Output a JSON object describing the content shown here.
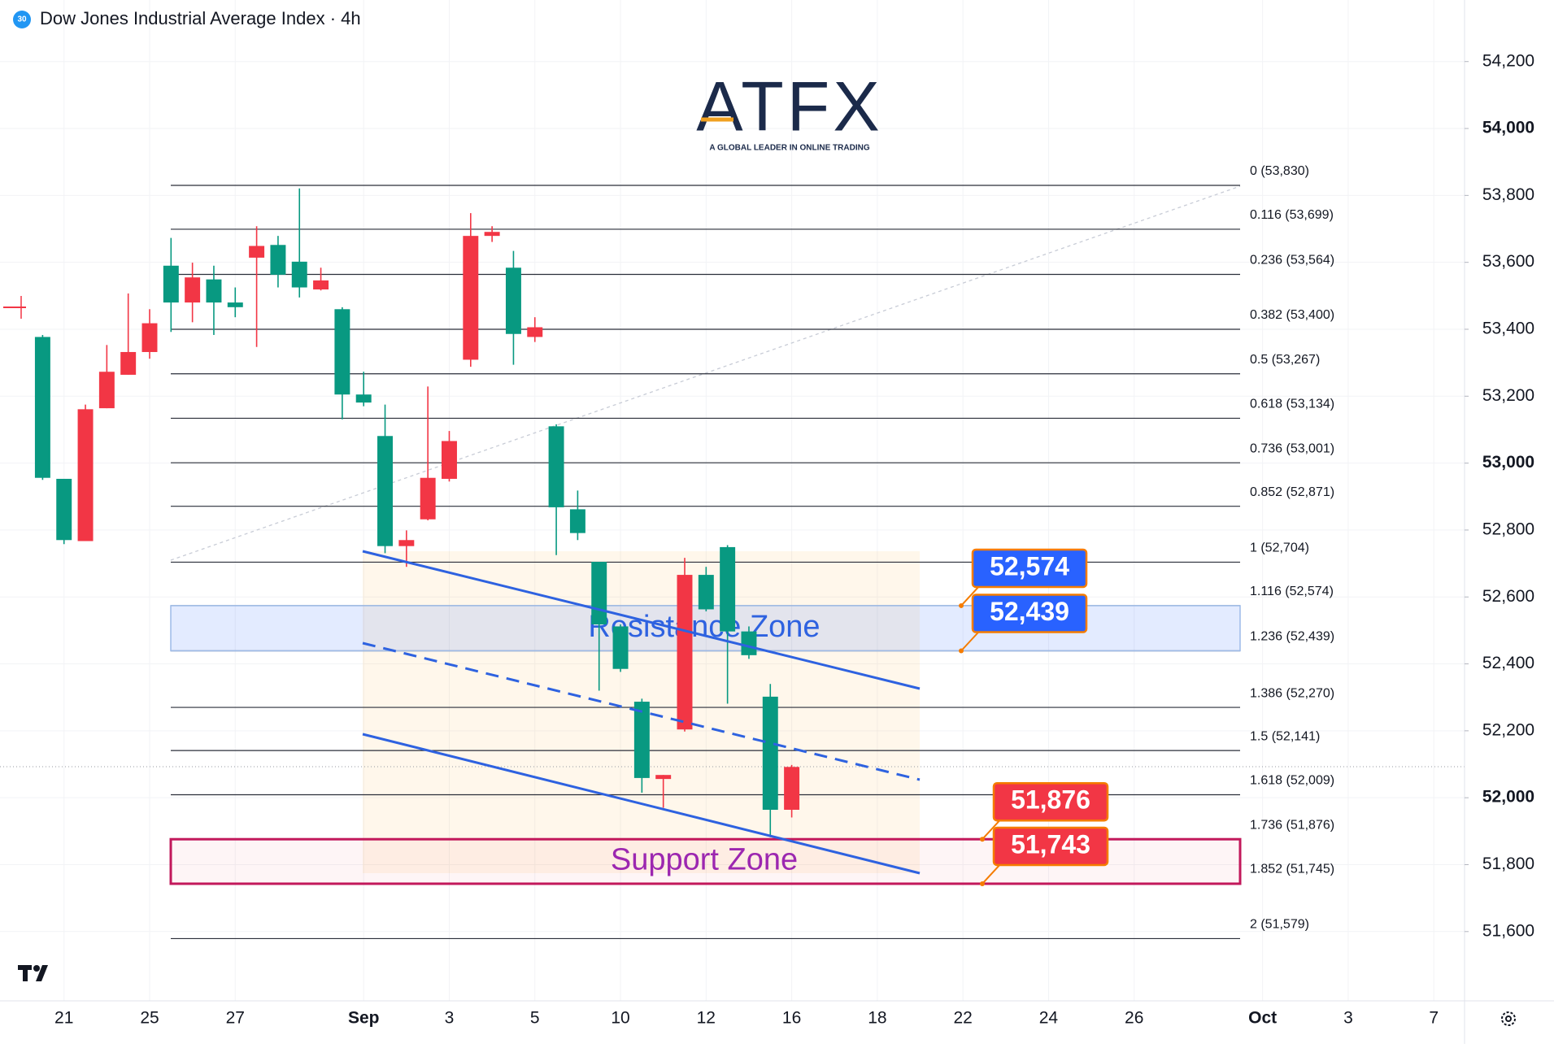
{
  "header": {
    "badge": "30",
    "title": "Dow Jones Industrial Average Index · 4h"
  },
  "logo": {
    "name": "ATFX",
    "tagline": "A GLOBAL LEADER IN ONLINE TRADING"
  },
  "chart_data": {
    "type": "candlestick",
    "up_color": "#089981",
    "down_color": "#f23645",
    "grid": true,
    "categories": [
      null,
      "21",
      null,
      null,
      null,
      "25",
      null,
      null,
      null,
      "27",
      null,
      null,
      null,
      null,
      null,
      "Sep",
      null,
      null,
      null,
      "3",
      null,
      null,
      null,
      "5",
      null,
      null,
      null,
      "10",
      null,
      null,
      null,
      "12",
      null,
      null,
      null,
      "16",
      null,
      null,
      null,
      "18",
      null,
      null,
      null,
      "22",
      null,
      null,
      null,
      "24",
      null,
      null,
      null,
      "26",
      null,
      null,
      null,
      null,
      null,
      "Oct",
      null,
      null,
      null,
      "3",
      null,
      null,
      null,
      "7",
      null
    ],
    "open": [
      52956,
      52770,
      53161,
      53273,
      53332,
      53418,
      53480,
      53555,
      53480,
      53466,
      53649,
      53563,
      53525,
      53546,
      53205,
      53181,
      52752,
      52770,
      52956,
      53066,
      53679,
      53691,
      53386,
      53406,
      52868,
      52791,
      52518,
      52385,
      52059,
      52068,
      52666,
      52563,
      52497,
      52426,
      51964,
      52092,
      null,
      null,
      null,
      null,
      null,
      null,
      null,
      null,
      null,
      null,
      null,
      null,
      null,
      null,
      null,
      null,
      null,
      null,
      null,
      null,
      null,
      null,
      null,
      null,
      null,
      null,
      null,
      null,
      null,
      null,
      null
    ],
    "high": [
      53383,
      52953,
      53175,
      53353,
      53507,
      53460,
      53673,
      53599,
      53590,
      53525,
      53708,
      53679,
      53821,
      53584,
      53466,
      53273,
      53175,
      52799,
      53229,
      53096,
      53747,
      53708,
      53634,
      53436,
      53116,
      52918,
      52705,
      52518,
      52296,
      52068,
      52717,
      52690,
      52755,
      52512,
      52340,
      52098,
      null,
      null,
      null,
      null,
      null,
      null,
      null,
      null,
      null,
      null,
      null,
      null,
      null,
      null,
      null,
      null,
      null,
      null,
      null,
      null,
      null,
      null,
      null,
      null,
      null,
      null,
      null,
      null,
      null,
      null,
      null
    ],
    "low": [
      52950,
      52758,
      52767,
      53164,
      53264,
      53312,
      53392,
      53421,
      53383,
      53436,
      53347,
      53525,
      53495,
      53516,
      53131,
      53170,
      52731,
      52690,
      52829,
      52945,
      53288,
      53661,
      53294,
      53362,
      52725,
      52770,
      52320,
      52376,
      52015,
      51970,
      52198,
      52557,
      52281,
      52415,
      51882,
      51941,
      null,
      null,
      null,
      null,
      null,
      null,
      null,
      null,
      null,
      null,
      null,
      null,
      null,
      null,
      null,
      null,
      null,
      null,
      null,
      null,
      null,
      null,
      null,
      null,
      null,
      null,
      null,
      null,
      null,
      null,
      null
    ],
    "close": [
      53377,
      52953,
      52767,
      53164,
      53264,
      53332,
      53590,
      53480,
      53549,
      53480,
      53614,
      53652,
      53602,
      53519,
      53460,
      53205,
      53081,
      52752,
      52832,
      52953,
      53309,
      53679,
      53584,
      53377,
      53110,
      52862,
      52705,
      52512,
      52287,
      52056,
      52204,
      52666,
      52749,
      52497,
      52302,
      51964,
      null,
      null,
      null,
      null,
      null,
      null,
      null,
      null,
      null,
      null,
      null,
      null,
      null,
      null,
      null,
      null,
      null,
      null,
      null,
      null,
      null,
      null,
      null,
      null,
      null,
      null,
      null,
      null,
      null,
      null,
      null
    ],
    "ylim": [
      51393,
      54384
    ],
    "yticks": [
      {
        "value": 51600,
        "label": "51,600"
      },
      {
        "value": 51800,
        "label": "51,800"
      },
      {
        "value": 52000,
        "label": "52,000"
      },
      {
        "value": 52200,
        "label": "52,200"
      },
      {
        "value": 52400,
        "label": "52,400"
      },
      {
        "value": 52600,
        "label": "52,600"
      },
      {
        "value": 52800,
        "label": "52,800"
      },
      {
        "value": 53000,
        "label": "53,000"
      },
      {
        "value": 53200,
        "label": "53,200"
      },
      {
        "value": 53400,
        "label": "53,400"
      },
      {
        "value": 53600,
        "label": "53,600"
      },
      {
        "value": 53800,
        "label": "53,800"
      },
      {
        "value": 54000,
        "label": "54,000"
      },
      {
        "value": 54200,
        "label": "54,200"
      }
    ],
    "fib_levels": [
      {
        "value": 53830,
        "label": "0 (53,830)"
      },
      {
        "value": 53699,
        "label": "0.116 (53,699)"
      },
      {
        "value": 53564,
        "label": "0.236 (53,564)"
      },
      {
        "value": 53400,
        "label": "0.382 (53,400)"
      },
      {
        "value": 53267,
        "label": "0.5 (53,267)"
      },
      {
        "value": 53134,
        "label": "0.618 (53,134)"
      },
      {
        "value": 53001,
        "label": "0.736 (53,001)"
      },
      {
        "value": 52871,
        "label": "0.852 (52,871)"
      },
      {
        "value": 52704,
        "label": "1 (52,704)"
      },
      {
        "value": 52574,
        "label": "1.116 (52,574)"
      },
      {
        "value": 52439,
        "label": "1.236 (52,439)"
      },
      {
        "value": 52270,
        "label": "1.386 (52,270)"
      },
      {
        "value": 52141,
        "label": "1.5 (52,141)"
      },
      {
        "value": 52009,
        "label": "1.618 (52,009)"
      },
      {
        "value": 51876,
        "label": "1.736 (51,876)"
      },
      {
        "value": 51745,
        "label": "1.852 (51,745)"
      },
      {
        "value": 51579,
        "label": "2 (51,579)"
      }
    ],
    "zones": [
      {
        "label": "Resistance Zone",
        "color": "#2962ff",
        "top": {
          "value": 52574,
          "label": "52,574"
        },
        "bottom": {
          "value": 52439,
          "label": "52,439"
        }
      },
      {
        "label": "Support Zone",
        "color": "#f23645",
        "top": {
          "value": 51876,
          "label": "51,876"
        },
        "bottom": {
          "value": 51743,
          "label": "51,743"
        }
      }
    ]
  }
}
